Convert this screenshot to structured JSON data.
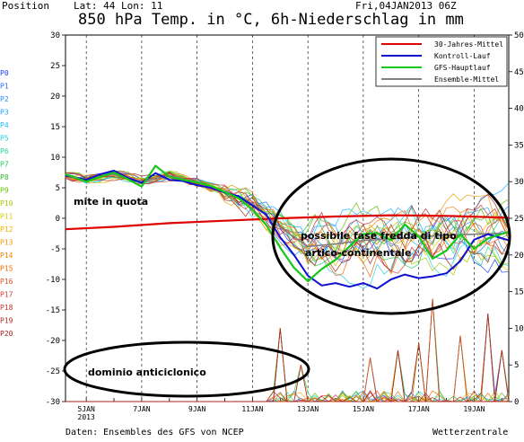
{
  "header": {
    "position_label": "Position",
    "lat_lon": "Lat: 44  Lon: 11",
    "date": "Fri,04JAN2013 06Z",
    "title": "850 hPa Temp. in °C, 6h-Niederschlag in mm"
  },
  "footer": {
    "left": "Daten: Ensembles des GFS von NCEP",
    "right": "Wetterzentrale"
  },
  "members": [
    "P0",
    "P1",
    "P2",
    "P3",
    "P4",
    "P5",
    "P6",
    "P7",
    "P8",
    "P9",
    "P10",
    "P11",
    "P12",
    "P13",
    "P14",
    "P15",
    "P16",
    "P17",
    "P18",
    "P19",
    "P20"
  ],
  "member_colors": [
    "#1e3cff",
    "#2a6cff",
    "#1f8fff",
    "#1aa4ff",
    "#16b8ff",
    "#20d0e0",
    "#20d890",
    "#28c860",
    "#30b830",
    "#6ac000",
    "#a8c800",
    "#e0c800",
    "#f0b000",
    "#f09800",
    "#f08000",
    "#f06800",
    "#e85020",
    "#d83c3c",
    "#c83030",
    "#b02828",
    "#a02020"
  ],
  "annotations": {
    "mite": "mite in quota",
    "cold_line1": "possibile fase fredda di tipo",
    "cold_line2": "artico-continentale",
    "anticyclone": "dominio anticiclonico"
  },
  "chart_data": {
    "type": "line",
    "title": "850 hPa Temp. in °C, 6h-Niederschlag in mm",
    "x_ticks": [
      "5JAN\n2013",
      "7JAN",
      "9JAN",
      "11JAN",
      "13JAN",
      "15JAN",
      "17JAN",
      "19JAN"
    ],
    "x_tick_days": [
      5,
      7,
      9,
      11,
      13,
      15,
      17,
      19
    ],
    "xlim_days": [
      4.25,
      20.25
    ],
    "ylim_left": [
      -30,
      30
    ],
    "left_ticks": [
      30,
      25,
      20,
      15,
      10,
      5,
      0,
      -5,
      -10,
      -15,
      -20,
      -25,
      -30
    ],
    "ylim_right": [
      0,
      50
    ],
    "right_ticks": [
      50,
      45,
      40,
      35,
      30,
      25,
      20,
      15,
      10,
      5,
      0
    ],
    "grid": "vertical-dashed",
    "legend_position": "top-right",
    "legend": [
      {
        "name": "30-Jahres-Mittel",
        "color": "#e00000"
      },
      {
        "name": "Kontroll-Lauf",
        "color": "#1010d0"
      },
      {
        "name": "GFS-Hauptlauf",
        "color": "#18c818"
      },
      {
        "name": "Ensemble-Mittel",
        "color": "#808080"
      }
    ],
    "series": [
      {
        "name": "30-Jahres-Mittel",
        "color": "#e00000",
        "x": [
          4.25,
          6,
          8,
          10,
          12,
          14,
          16,
          18,
          20.25
        ],
        "values": [
          -1.8,
          -1.4,
          -0.8,
          -0.4,
          0,
          0.3,
          0.5,
          0.4,
          0.1
        ]
      },
      {
        "name": "Kontroll-Lauf",
        "color": "#1010d0",
        "x": [
          4.25,
          5,
          5.5,
          6,
          6.5,
          7,
          7.5,
          8,
          8.5,
          9,
          9.5,
          10,
          10.5,
          11,
          11.5,
          12,
          12.5,
          13,
          13.5,
          14,
          14.5,
          15,
          15.5,
          16,
          16.5,
          17,
          17.5,
          18,
          18.5,
          19,
          19.5,
          20.25
        ],
        "values": [
          7,
          6.3,
          7.2,
          7.8,
          6.6,
          5.8,
          7.4,
          6.3,
          6.1,
          5.4,
          5.0,
          4.2,
          3.6,
          2.1,
          0.6,
          -3.1,
          -6.0,
          -9.4,
          -11.0,
          -10.6,
          -11.2,
          -10.6,
          -11.5,
          -10.0,
          -9.2,
          -9.8,
          -9.5,
          -9.0,
          -7.0,
          -3.5,
          -2.6,
          -3.6
        ]
      },
      {
        "name": "GFS-Hauptlauf",
        "color": "#18c818",
        "x": [
          4.25,
          5,
          5.5,
          6,
          6.5,
          7,
          7.5,
          8,
          8.5,
          9,
          9.5,
          10,
          10.5,
          11,
          11.5,
          12,
          12.5,
          13,
          13.5,
          14,
          14.5,
          15,
          15.5,
          16,
          16.5,
          17,
          17.5,
          18,
          18.5,
          19,
          19.5,
          20.25
        ],
        "values": [
          7.2,
          6.0,
          6.8,
          7.5,
          6.4,
          5.2,
          8.6,
          6.8,
          6.3,
          5.9,
          5.3,
          4.3,
          3.3,
          1.4,
          -1.1,
          -4.8,
          -8.1,
          -10.3,
          -8.3,
          -6.8,
          -4.6,
          -2.6,
          -2.4,
          -3.6,
          -1.0,
          -3.0,
          -6.6,
          -5.3,
          -2.6,
          -5.0,
          -3.3,
          -2.2
        ]
      },
      {
        "name": "Ensemble-Mittel",
        "color": "#808080",
        "x": [
          4.25,
          5,
          6,
          7,
          8,
          9,
          10,
          11,
          12,
          13,
          14,
          15,
          16,
          17,
          18,
          19,
          20.25
        ],
        "values": [
          7.0,
          6.4,
          7.2,
          6.0,
          7.0,
          5.9,
          4.4,
          2.4,
          -1.5,
          -4.6,
          -4.2,
          -3.6,
          -3.4,
          -3.0,
          -2.8,
          -2.6,
          -2.4
        ]
      }
    ]
  }
}
